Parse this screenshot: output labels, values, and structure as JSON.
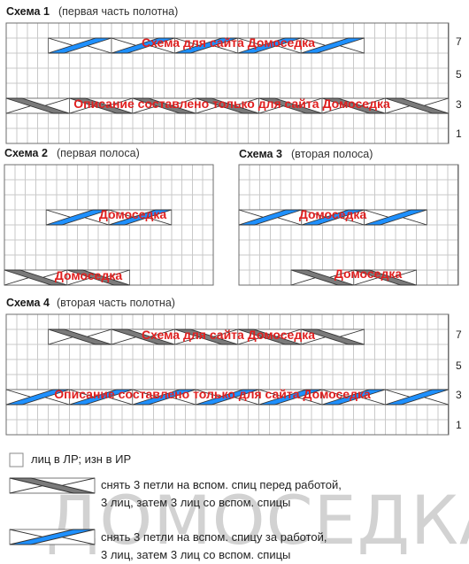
{
  "colors": {
    "left_cross": "#7a7a7a",
    "right_cross": "#1e90ff",
    "watermark_red": "#e02020",
    "grid": "#c9c9c9",
    "frame": "#6e6e6e"
  },
  "scheme1": {
    "title": "Схема 1",
    "subtitle": "(первая часть полотна)",
    "row_numbers": [
      "7",
      "5",
      "3",
      "1"
    ],
    "watermark_top": "Схема для сайта Домоседка",
    "watermark_bottom": "Описание составлено только для сайта Домоседка"
  },
  "scheme2": {
    "title": "Схема 2",
    "subtitle": "(первая полоса)",
    "watermark_top": "Домоседка",
    "watermark_bottom": "Домоседка"
  },
  "scheme3": {
    "title": "Схема 3",
    "subtitle": "(вторая полоса)",
    "watermark_top": "Домоседка",
    "watermark_bottom": "Домоседка"
  },
  "scheme4": {
    "title": "Схема 4",
    "subtitle": "(вторая часть полотна)",
    "row_numbers": [
      "7",
      "5",
      "3",
      "1"
    ],
    "watermark_top": "Схема для сайта Домоседка",
    "watermark_bottom": "Описание составлено только для сайта Домоседка"
  },
  "legend": {
    "knit": "лиц в ЛР; изн в ИР",
    "left_cross_line1": "снять 3 петли на вспом. спиц перед работой,",
    "left_cross_line2": "3 лиц, затем 3 лиц со вспом. спицы",
    "right_cross_line1": "снять 3 петли на вспом. спицу за работой,",
    "right_cross_line2": "3 лиц, затем 3 лиц со вспом. спицы"
  },
  "watermark_big": "ДОМОСЕДКА"
}
